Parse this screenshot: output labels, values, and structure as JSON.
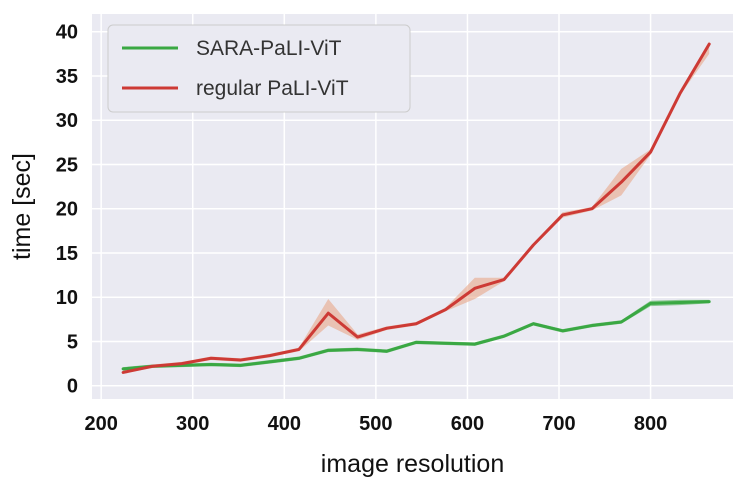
{
  "chart_data": {
    "type": "line",
    "xlabel": "image resolution",
    "ylabel": "time [sec]",
    "xlim": [
      190,
      890
    ],
    "ylim": [
      -1.5,
      42
    ],
    "xticks": [
      200,
      300,
      400,
      500,
      600,
      700,
      800
    ],
    "yticks": [
      0,
      5,
      10,
      15,
      20,
      25,
      30,
      35,
      40
    ],
    "grid": true,
    "legend_position": "top-left",
    "background_color": "#eaeaf2",
    "series": [
      {
        "name": "SARA-PaLI-ViT",
        "color": "#3aa843",
        "x": [
          224,
          256,
          288,
          320,
          352,
          384,
          416,
          448,
          480,
          512,
          544,
          576,
          608,
          640,
          672,
          704,
          736,
          768,
          800,
          832,
          864
        ],
        "y": [
          1.9,
          2.2,
          2.3,
          2.4,
          2.3,
          2.7,
          3.1,
          4.0,
          4.1,
          3.9,
          4.9,
          4.8,
          4.7,
          5.6,
          7.0,
          6.2,
          6.8,
          7.2,
          9.3,
          9.4,
          9.5
        ],
        "band": [
          [
            1.7,
            2.1
          ],
          [
            2.0,
            2.4
          ],
          [
            2.1,
            2.5
          ],
          [
            2.2,
            2.6
          ],
          [
            2.1,
            2.5
          ],
          [
            2.5,
            2.9
          ],
          [
            2.9,
            3.3
          ],
          [
            3.8,
            4.2
          ],
          [
            3.9,
            4.3
          ],
          [
            3.7,
            4.1
          ],
          [
            4.7,
            5.1
          ],
          [
            4.6,
            5.0
          ],
          [
            4.5,
            4.9
          ],
          [
            5.4,
            5.8
          ],
          [
            6.8,
            7.2
          ],
          [
            6.0,
            6.4
          ],
          [
            6.6,
            7.0
          ],
          [
            7.0,
            7.4
          ],
          [
            9.0,
            9.6
          ],
          [
            9.1,
            9.7
          ],
          [
            9.3,
            9.7
          ]
        ]
      },
      {
        "name": "regular PaLI-ViT",
        "color": "#cd3a35",
        "band_color": "#e8a080",
        "x": [
          224,
          256,
          288,
          320,
          352,
          384,
          416,
          448,
          480,
          512,
          544,
          576,
          608,
          640,
          672,
          704,
          736,
          768,
          800,
          832,
          864
        ],
        "y": [
          1.5,
          2.2,
          2.5,
          3.1,
          2.9,
          3.4,
          4.1,
          8.2,
          5.5,
          6.5,
          7.0,
          8.6,
          11.0,
          12.0,
          15.9,
          19.3,
          20.0,
          23.0,
          26.4,
          33.0,
          38.6
        ],
        "band": [
          [
            1.4,
            1.7
          ],
          [
            2.0,
            2.4
          ],
          [
            2.3,
            2.7
          ],
          [
            2.9,
            3.3
          ],
          [
            2.7,
            3.1
          ],
          [
            3.2,
            3.6
          ],
          [
            3.9,
            4.3
          ],
          [
            6.8,
            9.8
          ],
          [
            5.2,
            5.8
          ],
          [
            6.3,
            6.7
          ],
          [
            6.8,
            7.2
          ],
          [
            8.4,
            8.8
          ],
          [
            9.8,
            12.2
          ],
          [
            11.8,
            12.2
          ],
          [
            15.7,
            16.1
          ],
          [
            19.0,
            19.6
          ],
          [
            19.8,
            20.2
          ],
          [
            21.5,
            24.5
          ],
          [
            26.1,
            26.7
          ],
          [
            32.8,
            33.2
          ],
          [
            37.5,
            38.9
          ]
        ]
      }
    ]
  }
}
